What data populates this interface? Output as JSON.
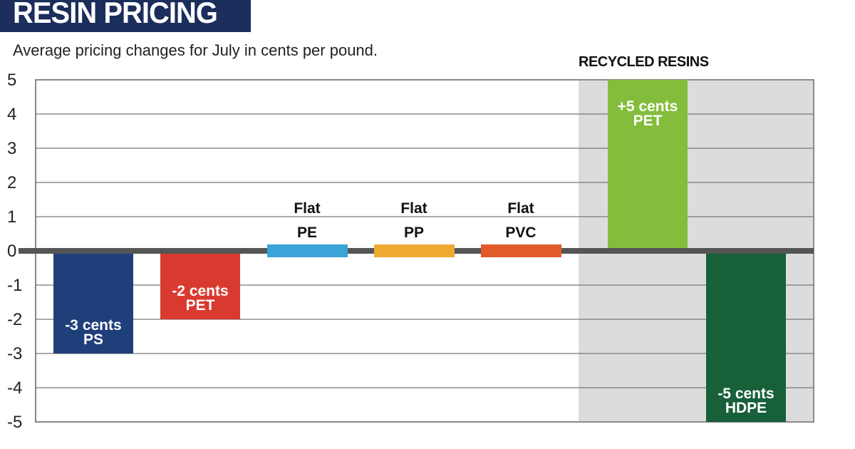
{
  "title": "RESIN PRICING",
  "subtitle": "Average pricing changes for July in cents per pound.",
  "section_label": "RECYCLED RESINS",
  "chart_data": {
    "type": "bar",
    "ylim": [
      -5,
      5
    ],
    "yticks": [
      5,
      4,
      3,
      2,
      1,
      0,
      -1,
      -2,
      -3,
      -4,
      -5
    ],
    "grid": true,
    "bars": [
      {
        "resin": "PS",
        "value": -3,
        "label": "-3 cents",
        "color": "#1f3f7a",
        "recycled": false
      },
      {
        "resin": "PET",
        "value": -2,
        "label": "-2 cents",
        "color": "#d93a2f",
        "recycled": false
      },
      {
        "resin": "PE",
        "value": 0,
        "label": "Flat",
        "color": "#3aa3d8",
        "recycled": false
      },
      {
        "resin": "PP",
        "value": 0,
        "label": "Flat",
        "color": "#eeaa33",
        "recycled": false
      },
      {
        "resin": "PVC",
        "value": 0,
        "label": "Flat",
        "color": "#e25a2a",
        "recycled": false
      },
      {
        "resin": "PET",
        "value": 5,
        "label": "+5 cents",
        "color": "#84bd3c",
        "recycled": true
      },
      {
        "resin": "HDPE",
        "value": -5,
        "label": "-5 cents",
        "color": "#17603a",
        "recycled": true
      }
    ]
  }
}
